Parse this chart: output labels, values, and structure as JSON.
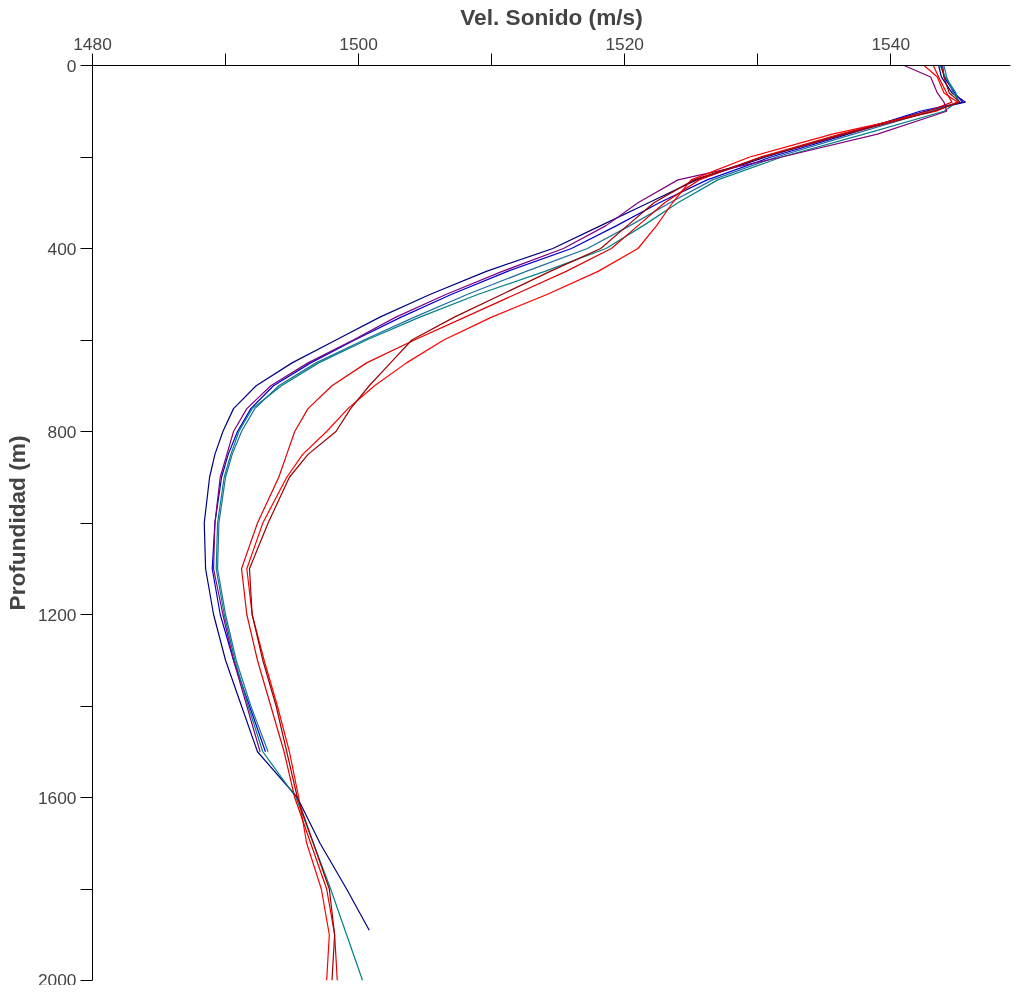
{
  "chart_data": {
    "type": "line",
    "xlabel": "Vel. Sonido (m/s)",
    "ylabel": "Profundidad (m)",
    "xlim": [
      1480,
      1549
    ],
    "ylim": [
      2000,
      0
    ],
    "xticks": [
      1480,
      {
        "value": 1490,
        "label": null
      },
      1500,
      {
        "value": 1510,
        "label": null
      },
      1520,
      {
        "value": 1530,
        "label": null
      },
      1540
    ],
    "yticks": [
      0,
      {
        "value": 200,
        "label": null
      },
      400,
      {
        "value": 600,
        "label": null
      },
      800,
      {
        "value": 1000,
        "label": null
      },
      1200,
      {
        "value": 1400,
        "label": null
      },
      1600,
      {
        "value": 1800,
        "label": null
      },
      2000
    ],
    "grid": false,
    "line_style": "solid",
    "marker": "none",
    "series": [
      {
        "color": "#000080",
        "x": [
          1543.6,
          1543.8,
          1544.6,
          1545.6,
          1542.6,
          1536.4,
          1530.6,
          1525.4,
          1521.8,
          1518.2,
          1514.6,
          1509.6,
          1505.4,
          1501.6,
          1498.3,
          1495.0,
          1492.3,
          1490.6,
          1489.8,
          1489.2,
          1488.8,
          1488.4,
          1488.5,
          1489.1,
          1490.0,
          1491.2,
          1492.4,
          1495.4,
          1497.1,
          1499.1,
          1500.8
        ],
        "values": [
          0,
          25,
          60,
          80,
          100,
          150,
          200,
          250,
          300,
          350,
          400,
          450,
          500,
          550,
          600,
          650,
          700,
          750,
          800,
          850,
          900,
          1000,
          1100,
          1200,
          1300,
          1400,
          1500,
          1600,
          1700,
          1800,
          1890
        ]
      },
      {
        "color": "#0000cd",
        "x": [
          1543.9,
          1544.0,
          1544.8,
          1545.4,
          1542.2,
          1536.8,
          1531.0,
          1526.2,
          1522.6,
          1519.4,
          1516.0,
          1511.2,
          1507.0,
          1503.2,
          1499.7,
          1496.4,
          1493.6,
          1491.9,
          1490.9,
          1490.2,
          1489.7,
          1489.2,
          1489.0,
          1489.6,
          1490.6,
          1491.8,
          1493.0
        ],
        "values": [
          0,
          25,
          60,
          80,
          100,
          150,
          200,
          250,
          300,
          350,
          400,
          450,
          500,
          550,
          600,
          650,
          700,
          750,
          800,
          850,
          900,
          1000,
          1100,
          1200,
          1300,
          1400,
          1500
        ]
      },
      {
        "color": "#1f6f9f",
        "x": [
          1544.0,
          1544.2,
          1544.7,
          1545.2,
          1543.0,
          1537.2,
          1531.4,
          1526.6,
          1523.4,
          1520.4,
          1517.2,
          1512.6,
          1508.2,
          1504.2,
          1500.4,
          1496.8,
          1494.0,
          1492.2,
          1491.2,
          1490.5,
          1490.0,
          1489.5,
          1489.4,
          1490.0,
          1490.8,
          1491.9,
          1493.2
        ],
        "values": [
          0,
          25,
          60,
          80,
          100,
          150,
          200,
          250,
          300,
          350,
          400,
          450,
          500,
          550,
          600,
          650,
          700,
          750,
          800,
          850,
          900,
          1000,
          1100,
          1200,
          1300,
          1400,
          1500
        ]
      },
      {
        "color": "#008080",
        "x": [
          1543.7,
          1544.1,
          1544.9,
          1545.0,
          1544.0,
          1538.0,
          1531.8,
          1527.0,
          1524.0,
          1521.4,
          1518.6,
          1514.0,
          1509.0,
          1504.6,
          1500.6,
          1497.0,
          1494.2,
          1492.0,
          1491.0,
          1490.4,
          1489.9,
          1489.4,
          1489.3,
          1489.9,
          1490.7,
          1491.7,
          1492.8,
          1495.3,
          1496.6,
          1497.9,
          1499.1,
          1500.3
        ],
        "values": [
          0,
          25,
          60,
          80,
          100,
          150,
          200,
          250,
          300,
          350,
          400,
          450,
          500,
          550,
          600,
          650,
          700,
          750,
          800,
          850,
          900,
          1000,
          1100,
          1200,
          1300,
          1400,
          1500,
          1600,
          1700,
          1800,
          1900,
          2000
        ]
      },
      {
        "color": "#800080",
        "x": [
          1541.0,
          1543.0,
          1543.5,
          1544.0,
          1544.2,
          1539.0,
          1531.8,
          1524.0,
          1521.0,
          1518.6,
          1515.4,
          1510.8,
          1506.6,
          1502.8,
          1499.6,
          1496.2,
          1493.4,
          1491.6,
          1490.6,
          1490.1,
          1489.6,
          1489.2,
          1489.1,
          1489.8,
          1490.6,
          1491.6,
          1492.6
        ],
        "values": [
          0,
          25,
          60,
          80,
          100,
          150,
          200,
          250,
          300,
          350,
          400,
          450,
          500,
          550,
          600,
          650,
          700,
          750,
          800,
          850,
          900,
          1000,
          1100,
          1200,
          1300,
          1400,
          1500
        ]
      },
      {
        "color": "#ff0000",
        "x": [
          1542.5,
          1543.5,
          1544.0,
          1545.0,
          1543.4,
          1535.6,
          1529.4,
          1525.0,
          1523.6,
          1522.4,
          1521.0,
          1518.0,
          1514.2,
          1510.0,
          1506.4,
          1503.6,
          1501.2,
          1499.2,
          1497.6,
          1495.8,
          1494.6,
          1492.8,
          1491.6,
          1492.0,
          1492.9,
          1493.9,
          1494.8,
          1495.5,
          1496.1,
          1497.2,
          1497.8,
          1497.6
        ],
        "values": [
          0,
          25,
          60,
          80,
          100,
          150,
          200,
          250,
          300,
          350,
          400,
          450,
          500,
          550,
          600,
          650,
          700,
          750,
          800,
          850,
          900,
          1000,
          1100,
          1200,
          1300,
          1400,
          1500,
          1600,
          1700,
          1800,
          1900,
          2000
        ]
      },
      {
        "color": "#e00000",
        "x": [
          1543.2,
          1543.6,
          1544.2,
          1544.6,
          1542.8,
          1536.2,
          1530.2,
          1525.6,
          1523.0,
          1521.0,
          1519.0,
          1515.6,
          1511.8,
          1508.0,
          1504.2,
          1500.6,
          1498.0,
          1496.2,
          1495.2,
          1494.6,
          1494.0,
          1492.4,
          1491.2,
          1491.6,
          1492.4,
          1493.4,
          1494.4,
          1495.2,
          1496.4,
          1497.6,
          1498.2,
          1498.4
        ],
        "values": [
          0,
          25,
          60,
          80,
          100,
          150,
          200,
          250,
          300,
          350,
          400,
          450,
          500,
          550,
          600,
          650,
          700,
          750,
          800,
          850,
          900,
          1000,
          1100,
          1200,
          1300,
          1400,
          1500,
          1600,
          1700,
          1800,
          1900,
          2000
        ]
      },
      {
        "color": "#9b0000",
        "x": [
          1543.8,
          1544.0,
          1544.4,
          1545.2,
          1543.2,
          1536.6,
          1530.4,
          1525.2,
          1522.2,
          1520.2,
          1518.2,
          1514.4,
          1510.8,
          1507.2,
          1504.0,
          1502.4,
          1500.8,
          1499.4,
          1498.3,
          1496.2,
          1494.8,
          1493.2,
          1491.8,
          1492.0,
          1492.8,
          1493.8,
          1494.6,
          1495.4,
          1496.6,
          1497.8,
          1498.2,
          1498.0
        ],
        "values": [
          0,
          25,
          60,
          80,
          100,
          150,
          200,
          250,
          300,
          350,
          400,
          450,
          500,
          550,
          600,
          650,
          700,
          750,
          800,
          850,
          900,
          1000,
          1100,
          1200,
          1300,
          1400,
          1500,
          1600,
          1700,
          1800,
          1900,
          2000
        ]
      }
    ]
  }
}
